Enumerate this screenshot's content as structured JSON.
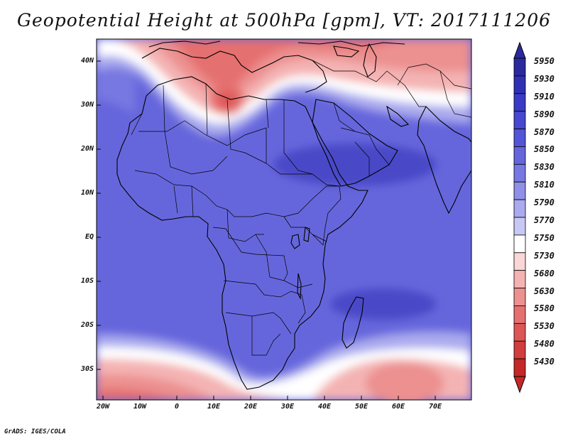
{
  "title": "Geopotential Height at 500hPa [gpm], VT: 2017111206",
  "credit": "GrADS: IGES/COLA",
  "axes": {
    "lat_labels": [
      "40N",
      "30N",
      "20N",
      "10N",
      "EQ",
      "10S",
      "20S",
      "30S"
    ],
    "lon_labels": [
      "20W",
      "10W",
      "0",
      "10E",
      "20E",
      "30E",
      "40E",
      "50E",
      "60E",
      "70E"
    ]
  },
  "colorbar": {
    "levels": [
      "5950",
      "5930",
      "5910",
      "5890",
      "5870",
      "5850",
      "5830",
      "5810",
      "5790",
      "5770",
      "5750",
      "5730",
      "5680",
      "5630",
      "5580",
      "5530",
      "5480",
      "5430"
    ],
    "colors": [
      "#2a2a9e",
      "#3030b4",
      "#3a3ac6",
      "#4747cf",
      "#5454d6",
      "#6565dc",
      "#7878e2",
      "#9090e8",
      "#aaaaee",
      "#c8c8f4",
      "#ffffff",
      "#fad6d6",
      "#f4b3b3",
      "#ec9090",
      "#e57070",
      "#dd5555",
      "#d23d3d",
      "#c42828"
    ]
  },
  "map": {
    "region": "Africa and Middle East, 35S-45N, 23W-80E",
    "features": [
      "coastlines",
      "country borders"
    ]
  }
}
